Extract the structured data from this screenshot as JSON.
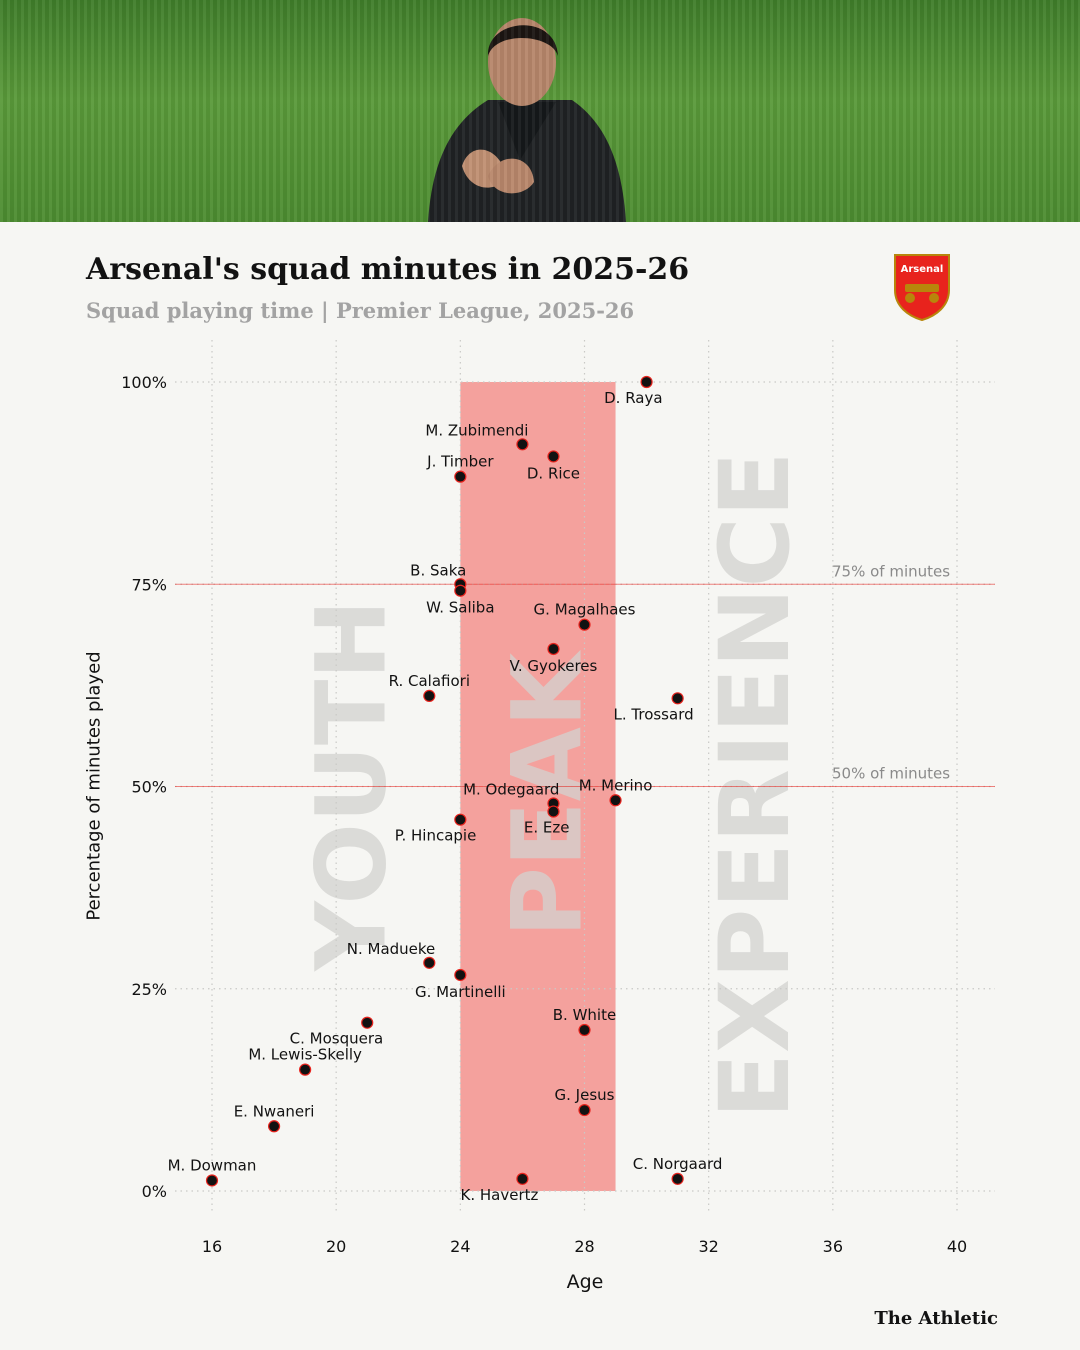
{
  "header": {
    "title": "Arsenal's squad minutes in 2025-26",
    "subtitle": "Squad playing time | Premier League, 2025-26",
    "crest_text": "Arsenal",
    "brand": "The Athletic"
  },
  "colors": {
    "background": "#f6f6f3",
    "peak_band": "#f4a19d",
    "point": "#121212",
    "point_outline": "#e8231d",
    "ref_line": "#e8231d",
    "zone_text": "#d3d3d0"
  },
  "chart_data": {
    "type": "scatter",
    "xlabel": "Age",
    "ylabel": "Percentage of minutes played",
    "xlim": [
      14,
      41.5
    ],
    "ylim": [
      0,
      100
    ],
    "xticks": [
      16,
      20,
      24,
      28,
      32,
      36,
      40
    ],
    "yticks": [
      {
        "value": 0,
        "label": "0%"
      },
      {
        "value": 25,
        "label": "25%"
      },
      {
        "value": 50,
        "label": "50%"
      },
      {
        "value": 75,
        "label": "75%"
      },
      {
        "value": 100,
        "label": "100%"
      }
    ],
    "grid": true,
    "peak_band": {
      "from_age": 24,
      "to_age": 29
    },
    "zones": [
      {
        "label": "YOUTH",
        "age": 20.5
      },
      {
        "label": "PEAK",
        "age": 26.8
      },
      {
        "label": "EXPERIENCE",
        "age": 33.5
      }
    ],
    "reference_lines": [
      {
        "value": 75,
        "label": "75% of minutes"
      },
      {
        "value": 50,
        "label": "50% of minutes"
      }
    ],
    "points": [
      {
        "name": "D. Raya",
        "age": 30,
        "pct": 100,
        "label_pos": "below-left"
      },
      {
        "name": "M. Zubimendi",
        "age": 26,
        "pct": 92.3,
        "label_pos": "above-left"
      },
      {
        "name": "D. Rice",
        "age": 27,
        "pct": 90.8,
        "label_pos": "below"
      },
      {
        "name": "J. Timber",
        "age": 24,
        "pct": 88.3,
        "label_pos": "above"
      },
      {
        "name": "B. Saka",
        "age": 24,
        "pct": 75,
        "label_pos": "above-left"
      },
      {
        "name": "W. Saliba",
        "age": 24,
        "pct": 74.2,
        "label_pos": "below"
      },
      {
        "name": "G. Magalhaes",
        "age": 28,
        "pct": 70,
        "label_pos": "above"
      },
      {
        "name": "V. Gyokeres",
        "age": 27,
        "pct": 67,
        "label_pos": "below"
      },
      {
        "name": "R. Calafiori",
        "age": 23,
        "pct": 61.2,
        "label_pos": "above"
      },
      {
        "name": "L. Trossard",
        "age": 31,
        "pct": 60.9,
        "label_pos": "below-left"
      },
      {
        "name": "M. Merino",
        "age": 29,
        "pct": 48.3,
        "label_pos": "above"
      },
      {
        "name": "M. Odegaard",
        "age": 27,
        "pct": 47.9,
        "label_pos": "above-left"
      },
      {
        "name": "E. Eze",
        "age": 27,
        "pct": 46.9,
        "label_pos": "below-left"
      },
      {
        "name": "P. Hincapie",
        "age": 24,
        "pct": 45.9,
        "label_pos": "below-left"
      },
      {
        "name": "N. Madueke",
        "age": 23,
        "pct": 28.2,
        "label_pos": "above-left"
      },
      {
        "name": "G. Martinelli",
        "age": 24,
        "pct": 26.7,
        "label_pos": "below"
      },
      {
        "name": "B. White",
        "age": 28,
        "pct": 19.9,
        "label_pos": "above"
      },
      {
        "name": "C. Mosquera",
        "age": 21,
        "pct": 20.8,
        "label_pos": "below-left"
      },
      {
        "name": "M. Lewis-Skelly",
        "age": 19,
        "pct": 15,
        "label_pos": "above"
      },
      {
        "name": "G. Jesus",
        "age": 28,
        "pct": 10,
        "label_pos": "above"
      },
      {
        "name": "E. Nwaneri",
        "age": 18,
        "pct": 8,
        "label_pos": "above"
      },
      {
        "name": "M. Dowman",
        "age": 16,
        "pct": 1.3,
        "label_pos": "above"
      },
      {
        "name": "K. Havertz",
        "age": 26,
        "pct": 1.5,
        "label_pos": "below-left"
      },
      {
        "name": "C. Norgaard",
        "age": 31,
        "pct": 1.5,
        "label_pos": "above"
      }
    ]
  }
}
